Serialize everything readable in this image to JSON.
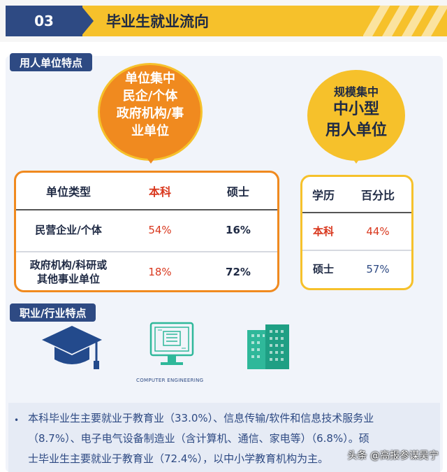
{
  "header": {
    "number": "03",
    "title": "毕业生就业流向"
  },
  "section1": {
    "label": "用人单位特点"
  },
  "bubble_left": {
    "lines": [
      "单位集中",
      "民企/个体",
      "政府机构/事",
      "业单位"
    ]
  },
  "bubble_right": {
    "line1": "规模集中",
    "line2": "中小型",
    "line3": "用人单位"
  },
  "table_left": {
    "headers": [
      "单位类型",
      "本科",
      "硕士"
    ],
    "rows": [
      {
        "label": "民营企业/个体",
        "bachelor": "54%",
        "master": "16%"
      },
      {
        "label_line1": "政府机构/科研或",
        "label_line2": "其他事业单位",
        "bachelor": "18%",
        "master": "72%"
      }
    ]
  },
  "table_right": {
    "headers": [
      "学历",
      "百分比"
    ],
    "rows": [
      {
        "label": "本科",
        "value": "44%"
      },
      {
        "label": "硕士",
        "value": "57%"
      }
    ]
  },
  "section2": {
    "label": "职业/行业特点"
  },
  "icons": {
    "icon1": "graduation-cap-icon",
    "icon2": "computer-engineering-icon",
    "icon3": "buildings-icon",
    "caption2": "COMPUTER ENGINEERING"
  },
  "notes": {
    "bullet": "•",
    "line1": "本科毕业生主要就业于教育业（33.0%）、信息传输/软件和信息技术服务业",
    "line2": "（8.7%）、电子电气设备制造业（含计算机、通信、家电等）（6.8%）。硕",
    "line3": "士毕业生主要就业于教育业（72.4%），以中小学教育机构为主。"
  },
  "watermark": "头条 @高报参谋吴宁",
  "colors": {
    "navy": "#2e4a83",
    "yellow": "#f6c12b",
    "orange": "#f08a1f",
    "red": "#d9381e",
    "teal": "#2fb89a"
  }
}
